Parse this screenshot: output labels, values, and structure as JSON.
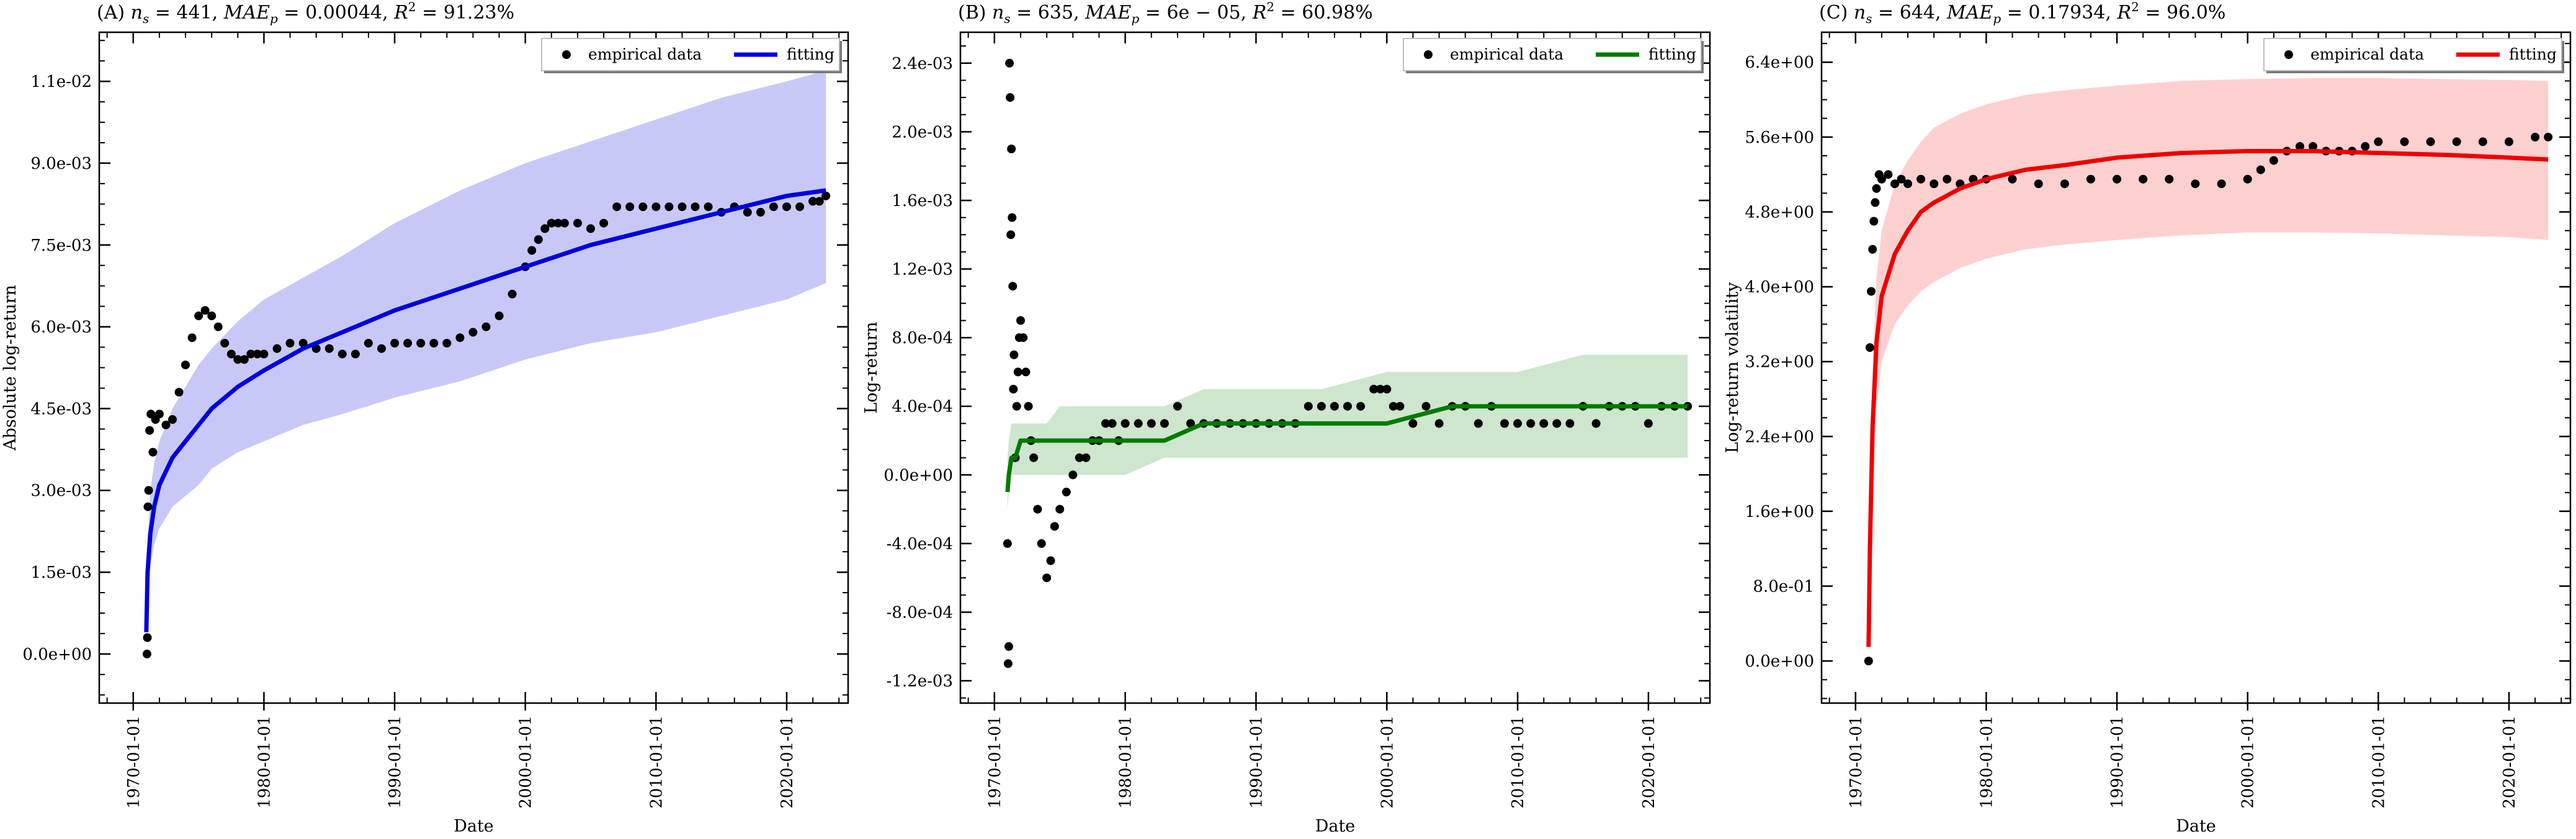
{
  "chart_data": [
    {
      "type": "scatter",
      "title": "(A) n_s = 441, MAE_p = 0.00044, R^2 = 91.23%",
      "title_parts": [
        "(A) ",
        "n",
        "s",
        " = 441, ",
        "MAE",
        "p",
        " = 0.00044, ",
        "R",
        "2",
        " = 91.23%"
      ],
      "xlabel": "Date",
      "ylabel": "Absolute log-return",
      "x_ticks": [
        "1970-01-01",
        "1980-01-01",
        "1990-01-01",
        "2000-01-01",
        "2010-01-01",
        "2020-01-01"
      ],
      "y_ticks": [
        "0.0e+00",
        "1.5e-03",
        "3.0e-03",
        "4.5e-03",
        "6.0e-03",
        "7.5e-03",
        "9.0e-03",
        "1.1e-02"
      ],
      "y_tick_values": [
        0,
        0.0015,
        0.003,
        0.0045,
        0.006,
        0.0075,
        0.009,
        0.0105
      ],
      "xlim": [
        1967.4,
        2024.7
      ],
      "ylim": [
        -0.0009,
        0.0114
      ],
      "legend": [
        "empirical data",
        "fitting"
      ],
      "legend_position": "top-right",
      "fit_color": "#0000dd",
      "band_color": "#c8c8f8",
      "empirical": {
        "x": [
          1971.05,
          1971.08,
          1971.12,
          1971.18,
          1971.25,
          1971.35,
          1971.5,
          1971.7,
          1972.0,
          1972.5,
          1973.0,
          1973.5,
          1974.0,
          1974.5,
          1975.0,
          1975.5,
          1976.0,
          1976.5,
          1977.0,
          1977.5,
          1978.0,
          1978.5,
          1979.0,
          1979.5,
          1980.0,
          1981.0,
          1982.0,
          1983.0,
          1984.0,
          1985.0,
          1986.0,
          1987.0,
          1988.0,
          1989.0,
          1990.0,
          1991.0,
          1992.0,
          1993.0,
          1994.0,
          1995.0,
          1996.0,
          1997.0,
          1998.0,
          1999.0,
          2000.0,
          2000.5,
          2001.0,
          2001.5,
          2002.0,
          2002.5,
          2003.0,
          2004.0,
          2005.0,
          2006.0,
          2007.0,
          2008.0,
          2009.0,
          2010.0,
          2011.0,
          2012.0,
          2013.0,
          2014.0,
          2015.0,
          2016.0,
          2017.0,
          2018.0,
          2019.0,
          2020.0,
          2021.0,
          2022.0,
          2022.5,
          2023.0
        ],
        "y": [
          0.0,
          0.0003,
          0.0027,
          0.003,
          0.0041,
          0.0044,
          0.0037,
          0.0043,
          0.0044,
          0.0042,
          0.0043,
          0.0048,
          0.0053,
          0.0058,
          0.0062,
          0.0063,
          0.0062,
          0.006,
          0.0057,
          0.0055,
          0.0054,
          0.0054,
          0.0055,
          0.0055,
          0.0055,
          0.0056,
          0.0057,
          0.0057,
          0.0056,
          0.0056,
          0.0055,
          0.0055,
          0.0057,
          0.0056,
          0.0057,
          0.0057,
          0.0057,
          0.0057,
          0.0057,
          0.0058,
          0.0059,
          0.006,
          0.0062,
          0.0066,
          0.0071,
          0.0074,
          0.0076,
          0.0078,
          0.0079,
          0.0079,
          0.0079,
          0.0079,
          0.0078,
          0.0079,
          0.0082,
          0.0082,
          0.0082,
          0.0082,
          0.0082,
          0.0082,
          0.0082,
          0.0082,
          0.0081,
          0.0082,
          0.0081,
          0.0081,
          0.0082,
          0.0082,
          0.0082,
          0.0083,
          0.0083,
          0.0084
        ]
      },
      "fit": {
        "x": [
          1971.0,
          1971.1,
          1971.3,
          1971.6,
          1972.0,
          1973.0,
          1974.0,
          1975.0,
          1976.0,
          1978.0,
          1980.0,
          1983.0,
          1986.0,
          1990.0,
          1995.0,
          2000.0,
          2005.0,
          2010.0,
          2015.0,
          2020.0,
          2023.0
        ],
        "y": [
          0.0004,
          0.0015,
          0.0022,
          0.0027,
          0.0031,
          0.0036,
          0.0039,
          0.0042,
          0.0045,
          0.0049,
          0.0052,
          0.0056,
          0.0059,
          0.0063,
          0.0067,
          0.0071,
          0.0075,
          0.0078,
          0.0081,
          0.0084,
          0.0085
        ]
      },
      "band": {
        "x": [
          1971.0,
          1971.1,
          1971.3,
          1971.6,
          1972.0,
          1973.0,
          1974.0,
          1975.0,
          1976.0,
          1978.0,
          1980.0,
          1983.0,
          1986.0,
          1990.0,
          1995.0,
          2000.0,
          2005.0,
          2010.0,
          2015.0,
          2020.0,
          2023.0
        ],
        "lower": [
          0.0003,
          0.0011,
          0.0016,
          0.002,
          0.0023,
          0.0027,
          0.0029,
          0.0031,
          0.0034,
          0.0037,
          0.0039,
          0.0042,
          0.0044,
          0.0047,
          0.005,
          0.0054,
          0.0057,
          0.0059,
          0.0062,
          0.0065,
          0.0068
        ],
        "upper": [
          0.0005,
          0.002,
          0.003,
          0.0035,
          0.0039,
          0.0045,
          0.0049,
          0.0053,
          0.0056,
          0.0061,
          0.0065,
          0.0069,
          0.0073,
          0.0079,
          0.0085,
          0.009,
          0.0094,
          0.0098,
          0.0102,
          0.0105,
          0.0107
        ]
      }
    },
    {
      "type": "scatter",
      "title": "(B) n_s = 635, MAE_p = 6e-05, R^2 = 60.98%",
      "title_parts": [
        "(B) ",
        "n",
        "s",
        " = 635, ",
        "MAE",
        "p",
        " = 6e − 05, ",
        "R",
        "2",
        " = 60.98%"
      ],
      "xlabel": "Date",
      "ylabel": "Log-return",
      "x_ticks": [
        "1970-01-01",
        "1980-01-01",
        "1990-01-01",
        "2000-01-01",
        "2010-01-01",
        "2020-01-01"
      ],
      "y_ticks": [
        "-1.2e-03",
        "-8.0e-04",
        "-4.0e-04",
        "0.0e+00",
        "4.0e-04",
        "8.0e-04",
        "1.2e-03",
        "1.6e-03",
        "2.0e-03",
        "2.4e-03"
      ],
      "y_tick_values": [
        -0.0012,
        -0.0008,
        -0.0004,
        0,
        0.0004,
        0.0008,
        0.0012,
        0.0016,
        0.002,
        0.0024
      ],
      "xlim": [
        1967.4,
        2024.7
      ],
      "ylim": [
        -0.00133,
        0.00258
      ],
      "legend": [
        "empirical data",
        "fitting"
      ],
      "legend_position": "top-right",
      "fit_color": "#007a00",
      "band_color": "#cde6cd",
      "empirical": {
        "x": [
          1971.0,
          1971.05,
          1971.1,
          1971.15,
          1971.2,
          1971.25,
          1971.3,
          1971.35,
          1971.4,
          1971.45,
          1971.5,
          1971.6,
          1971.7,
          1971.8,
          1971.9,
          1972.0,
          1972.2,
          1972.4,
          1972.6,
          1972.8,
          1973.0,
          1973.3,
          1973.6,
          1974.0,
          1974.3,
          1974.6,
          1975.0,
          1975.5,
          1976.0,
          1976.5,
          1977.0,
          1977.5,
          1978.0,
          1978.5,
          1979.0,
          1979.5,
          1980.0,
          1981.0,
          1982.0,
          1983.0,
          1984.0,
          1985.0,
          1986.0,
          1987.0,
          1988.0,
          1989.0,
          1990.0,
          1991.0,
          1992.0,
          1993.0,
          1994.0,
          1995.0,
          1996.0,
          1997.0,
          1998.0,
          1999.0,
          1999.5,
          2000.0,
          2000.5,
          2001.0,
          2002.0,
          2003.0,
          2004.0,
          2005.0,
          2006.0,
          2007.0,
          2008.0,
          2009.0,
          2010.0,
          2011.0,
          2012.0,
          2013.0,
          2014.0,
          2015.0,
          2016.0,
          2017.0,
          2018.0,
          2019.0,
          2020.0,
          2021.0,
          2022.0,
          2023.0
        ],
        "y": [
          -0.0004,
          -0.0011,
          -0.001,
          0.0024,
          0.0022,
          0.0014,
          0.0019,
          0.0015,
          0.0011,
          0.0005,
          0.0007,
          0.0001,
          0.0004,
          0.0006,
          0.0008,
          0.0009,
          0.0008,
          0.0006,
          0.0004,
          0.0002,
          0.0001,
          -0.0002,
          -0.0004,
          -0.0006,
          -0.0005,
          -0.0003,
          -0.0002,
          -0.0001,
          0.0,
          0.0001,
          0.0001,
          0.0002,
          0.0002,
          0.0003,
          0.0003,
          0.0002,
          0.0003,
          0.0003,
          0.0003,
          0.0003,
          0.0004,
          0.0003,
          0.0003,
          0.0003,
          0.0003,
          0.0003,
          0.0003,
          0.0003,
          0.0003,
          0.0003,
          0.0004,
          0.0004,
          0.0004,
          0.0004,
          0.0004,
          0.0005,
          0.0005,
          0.0005,
          0.0004,
          0.0004,
          0.0003,
          0.0004,
          0.0003,
          0.0004,
          0.0004,
          0.0003,
          0.0004,
          0.0003,
          0.0003,
          0.0003,
          0.0003,
          0.0003,
          0.0003,
          0.0004,
          0.0003,
          0.0004,
          0.0004,
          0.0004,
          0.0003,
          0.0004,
          0.0004,
          0.0004
        ]
      },
      "fit": {
        "x": [
          1971.0,
          1971.1,
          1971.3,
          1971.6,
          1972.0,
          1973.0,
          1974.0,
          1975.0,
          1976.0,
          1978.0,
          1980.0,
          1983.0,
          1986.0,
          1990.0,
          1995.0,
          2000.0,
          2005.0,
          2010.0,
          2015.0,
          2020.0,
          2023.0
        ],
        "y": [
          -0.0001,
          0.0,
          0.0001,
          0.0001,
          0.0002,
          0.0002,
          0.0002,
          0.0002,
          0.0002,
          0.0002,
          0.0002,
          0.0002,
          0.0003,
          0.0003,
          0.0003,
          0.0003,
          0.0004,
          0.0004,
          0.0004,
          0.0004,
          0.0004
        ]
      },
      "band": {
        "x": [
          1971.0,
          1971.1,
          1971.3,
          1971.6,
          1972.0,
          1973.0,
          1974.0,
          1975.0,
          1976.0,
          1978.0,
          1980.0,
          1983.0,
          1986.0,
          1990.0,
          1995.0,
          2000.0,
          2005.0,
          2010.0,
          2015.0,
          2020.0,
          2023.0
        ],
        "lower": [
          -0.0002,
          -0.0001,
          0.0,
          0.0,
          0.0,
          0.0,
          0.0,
          0.0,
          0.0,
          0.0,
          0.0,
          0.0001,
          0.0001,
          0.0001,
          0.0001,
          0.0001,
          0.0001,
          0.0001,
          0.0001,
          0.0001,
          0.0001
        ],
        "upper": [
          0.0001,
          0.0002,
          0.0003,
          0.0003,
          0.0003,
          0.0003,
          0.0003,
          0.0004,
          0.0004,
          0.0004,
          0.0004,
          0.0004,
          0.0005,
          0.0005,
          0.0005,
          0.0006,
          0.0006,
          0.0006,
          0.0007,
          0.0007,
          0.0007
        ]
      }
    },
    {
      "type": "scatter",
      "title": "(C) n_s = 644, MAE_p = 0.17934, R^2 = 96.0%",
      "title_parts": [
        "(C) ",
        "n",
        "s",
        " = 644, ",
        "MAE",
        "p",
        " = 0.17934, ",
        "R",
        "2",
        " = 96.0%"
      ],
      "xlabel": "Date",
      "ylabel": "Log-return volatility",
      "x_ticks": [
        "1970-01-01",
        "1980-01-01",
        "1990-01-01",
        "2000-01-01",
        "2010-01-01",
        "2020-01-01"
      ],
      "y_ticks": [
        "0.0e+00",
        "8.0e-01",
        "1.6e+00",
        "2.4e+00",
        "3.2e+00",
        "4.0e+00",
        "4.8e+00",
        "5.6e+00",
        "6.4e+00"
      ],
      "y_tick_values": [
        0,
        0.8,
        1.6,
        2.4,
        3.2,
        4.0,
        4.8,
        5.6,
        6.4
      ],
      "xlim": [
        1967.4,
        2024.7
      ],
      "ylim": [
        -0.45,
        6.72
      ],
      "legend": [
        "empirical data",
        "fitting"
      ],
      "legend_position": "top-right",
      "fit_color": "#ee0000",
      "band_color": "#fdd0d0",
      "empirical": {
        "x": [
          1971.0,
          1971.1,
          1971.2,
          1971.3,
          1971.4,
          1971.5,
          1971.6,
          1971.8,
          1972.0,
          1972.5,
          1973.0,
          1973.5,
          1974.0,
          1975.0,
          1976.0,
          1977.0,
          1978.0,
          1979.0,
          1980.0,
          1982.0,
          1984.0,
          1986.0,
          1988.0,
          1990.0,
          1992.0,
          1994.0,
          1996.0,
          1998.0,
          2000.0,
          2001.0,
          2002.0,
          2003.0,
          2004.0,
          2005.0,
          2006.0,
          2007.0,
          2008.0,
          2009.0,
          2010.0,
          2012.0,
          2014.0,
          2016.0,
          2018.0,
          2020.0,
          2022.0,
          2023.0
        ],
        "y": [
          0.0,
          3.35,
          3.95,
          4.4,
          4.7,
          4.9,
          5.05,
          5.2,
          5.15,
          5.2,
          5.1,
          5.15,
          5.1,
          5.15,
          5.1,
          5.15,
          5.1,
          5.15,
          5.15,
          5.15,
          5.1,
          5.1,
          5.15,
          5.15,
          5.15,
          5.15,
          5.1,
          5.1,
          5.15,
          5.25,
          5.35,
          5.45,
          5.5,
          5.5,
          5.45,
          5.45,
          5.45,
          5.5,
          5.55,
          5.55,
          5.55,
          5.55,
          5.55,
          5.55,
          5.6,
          5.6
        ]
      },
      "fit": {
        "x": [
          1971.0,
          1971.1,
          1971.3,
          1971.6,
          1972.0,
          1973.0,
          1974.0,
          1975.0,
          1976.0,
          1978.0,
          1980.0,
          1983.0,
          1986.0,
          1990.0,
          1995.0,
          2000.0,
          2005.0,
          2010.0,
          2015.0,
          2020.0,
          2023.0
        ],
        "y": [
          0.15,
          1.2,
          2.5,
          3.4,
          3.9,
          4.35,
          4.6,
          4.8,
          4.9,
          5.05,
          5.15,
          5.25,
          5.3,
          5.38,
          5.43,
          5.45,
          5.45,
          5.43,
          5.41,
          5.38,
          5.36
        ]
      },
      "band": {
        "x": [
          1971.0,
          1971.1,
          1971.3,
          1971.6,
          1972.0,
          1973.0,
          1974.0,
          1975.0,
          1976.0,
          1978.0,
          1980.0,
          1983.0,
          1986.0,
          1990.0,
          1995.0,
          2000.0,
          2005.0,
          2010.0,
          2015.0,
          2020.0,
          2023.0
        ],
        "lower": [
          0.1,
          0.9,
          1.9,
          2.7,
          3.2,
          3.6,
          3.8,
          3.95,
          4.05,
          4.2,
          4.3,
          4.4,
          4.45,
          4.5,
          4.55,
          4.58,
          4.58,
          4.57,
          4.55,
          4.53,
          4.5
        ],
        "upper": [
          0.2,
          1.5,
          3.1,
          4.1,
          4.6,
          5.1,
          5.35,
          5.55,
          5.7,
          5.85,
          5.95,
          6.05,
          6.1,
          6.15,
          6.2,
          6.22,
          6.23,
          6.23,
          6.22,
          6.21,
          6.2
        ]
      }
    }
  ]
}
